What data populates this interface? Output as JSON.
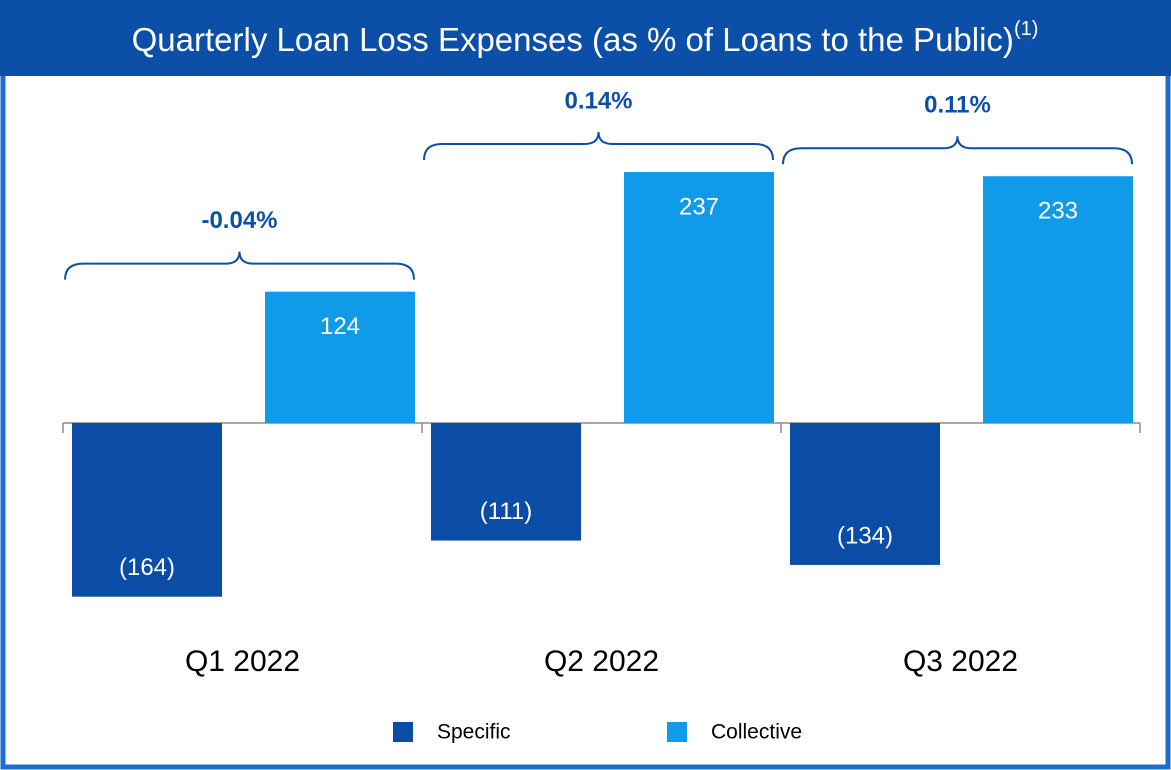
{
  "chart_data": {
    "type": "bar",
    "title": "Quarterly Loan Loss Expenses (as % of Loans to the Public)",
    "title_note": "(1)",
    "categories": [
      "Q1 2022",
      "Q2 2022",
      "Q3 2022"
    ],
    "series": [
      {
        "name": "Specific",
        "color": "#0a4ca6",
        "values": [
          -164,
          -111,
          -134
        ],
        "value_labels": [
          "(164)",
          "(111)",
          "(134)"
        ]
      },
      {
        "name": "Collective",
        "color": "#0f9bea",
        "values": [
          124,
          237,
          233
        ]
      }
    ],
    "annotations": [
      "-0.04%",
      "0.14%",
      "0.11%"
    ],
    "annotation_color": "#0b4fa8",
    "legend": "bottom"
  }
}
